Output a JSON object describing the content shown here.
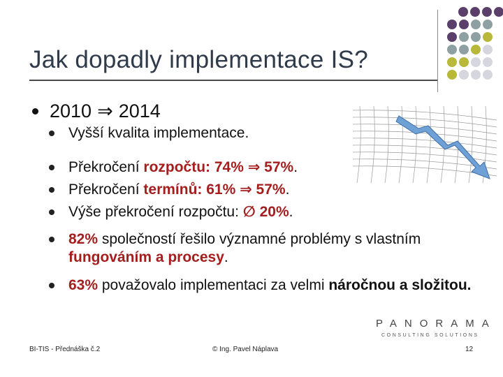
{
  "slide": {
    "title": "Jak dopadly implementace IS?",
    "bullet1": {
      "from": "2010",
      "arrow": "⇒",
      "to": "2014"
    },
    "items": [
      {
        "parts": [
          {
            "t": "Vyšší kvalita implementace."
          }
        ]
      },
      {
        "parts": [
          {
            "t": "Překročení "
          },
          {
            "t": "rozpočtu: 74% ⇒ 57%",
            "s": "red"
          },
          {
            "t": "."
          }
        ]
      },
      {
        "parts": [
          {
            "t": "Překročení "
          },
          {
            "t": "termínů: 61% ⇒ 57%",
            "s": "red"
          },
          {
            "t": "."
          }
        ]
      },
      {
        "parts": [
          {
            "t": "Výše překročení rozpočtu: "
          },
          {
            "t": "∅ 20%",
            "s": "red"
          },
          {
            "t": "."
          }
        ]
      },
      {
        "parts": [
          {
            "t": "82%",
            "s": "red"
          },
          {
            "t": " společností řešilo významné problémy s vlastním "
          },
          {
            "t": "fungováním a procesy",
            "s": "red"
          },
          {
            "t": "."
          }
        ]
      },
      {
        "parts": [
          {
            "t": "63%",
            "s": "red"
          },
          {
            "t": " považovalo implementaci za velmi "
          },
          {
            "t": "náročnou a složitou.",
            "s": "bold"
          }
        ]
      }
    ]
  },
  "logo": {
    "top": "PANORAMA",
    "bottom": "CONSULTING SOLUTIONS"
  },
  "footer": {
    "left": "BI-TIS - Přednáška č.2",
    "center": "© Ing. Pavel Náplava",
    "right": "12"
  },
  "colors": {
    "title": "#2f3a4a",
    "emphasis": "#a41e1e",
    "dot_purple": "#5a3f6a",
    "dot_gray": "#8fa0a3",
    "dot_olive": "#b8b83a",
    "dot_light": "#d6d6de"
  },
  "icons": {
    "bullet": "filled-circle",
    "trend_image": "declining-chart-arrow"
  }
}
